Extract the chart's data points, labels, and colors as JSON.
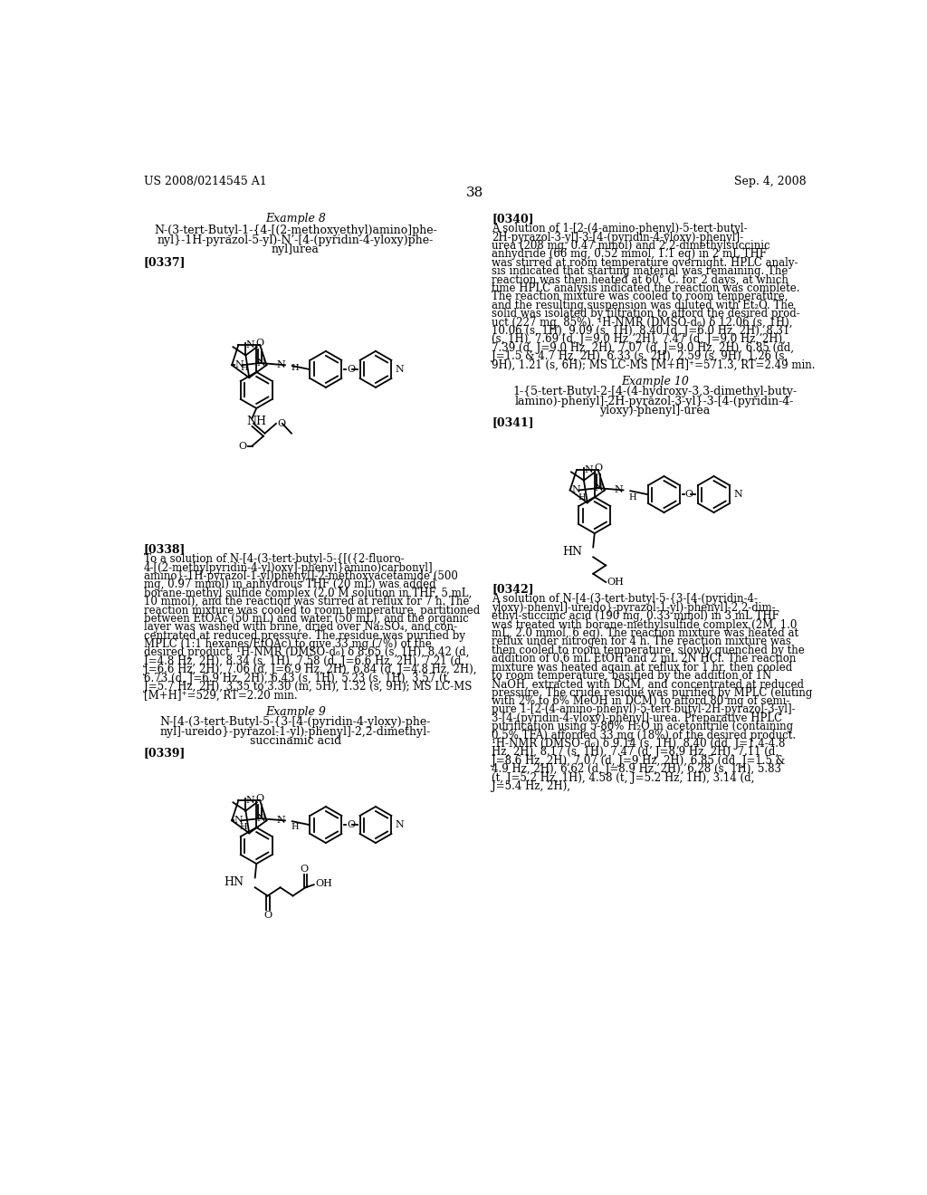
{
  "background_color": "#ffffff",
  "header_left": "US 2008/0214545 A1",
  "header_right": "Sep. 4, 2008",
  "page_number": "38"
}
